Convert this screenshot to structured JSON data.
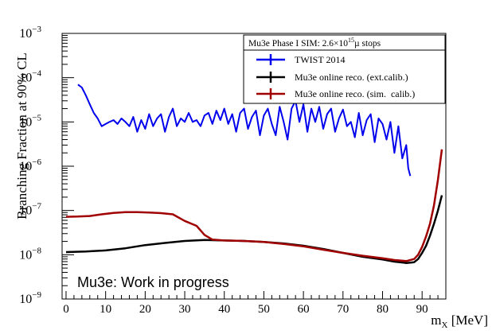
{
  "chart_data": {
    "type": "line",
    "title": "",
    "xlabel_main": "m",
    "xlabel_sub": "X",
    "xlabel_unit": " [MeV]",
    "ylabel": "Branching Fraction at 90% CL",
    "xlim": [
      -1,
      96
    ],
    "ylim_log10": [
      -9,
      -3
    ],
    "x_ticks": [
      0,
      10,
      20,
      30,
      40,
      50,
      60,
      70,
      80,
      90
    ],
    "x_tick_labels": [
      "0",
      "10",
      "20",
      "30",
      "40",
      "50",
      "60",
      "70",
      "80",
      "90"
    ],
    "y_tick_exponents": [
      -9,
      -8,
      -7,
      -6,
      -5,
      -4,
      -3
    ],
    "y_tick_base": "10",
    "y_tick_exponent_labels": [
      "−9",
      "−8",
      "−7",
      "−6",
      "−5",
      "−4",
      "−3"
    ],
    "legend": {
      "position": "top-right",
      "header_prefix": "Mu3e Phase I SIM: 2.6×10",
      "header_exp": "15",
      "header_suffix": "µ stops"
    },
    "annotation": "Mu3e: Work in progress",
    "series": [
      {
        "name": "TWIST 2014",
        "color": "#0000ee",
        "x": [
          3,
          4,
          5,
          6,
          7,
          8,
          9,
          10,
          11,
          12,
          13,
          14,
          15,
          16,
          17,
          18,
          19,
          20,
          21,
          22,
          23,
          24,
          25,
          26,
          27,
          28,
          29,
          30,
          31,
          32,
          33,
          34,
          35,
          36,
          37,
          38,
          39,
          40,
          41,
          42,
          43,
          44,
          45,
          46,
          47,
          48,
          49,
          50,
          51,
          52,
          53,
          54,
          55,
          56,
          57,
          58,
          59,
          60,
          61,
          62,
          63,
          64,
          65,
          66,
          67,
          68,
          69,
          70,
          71,
          72,
          73,
          74,
          75,
          76,
          77,
          78,
          79,
          80,
          81,
          82,
          83,
          84,
          85,
          86,
          86.5,
          87
        ],
        "y": [
          7e-05,
          6e-05,
          4e-05,
          2.5e-05,
          1.6e-05,
          1.2e-05,
          8e-06,
          9e-06,
          1e-05,
          1.1e-05,
          9e-06,
          1.2e-05,
          1e-05,
          8e-06,
          1.3e-05,
          6e-06,
          1.1e-05,
          7e-06,
          1.5e-05,
          8e-06,
          1.2e-05,
          1.5e-05,
          6e-06,
          1.3e-05,
          2e-05,
          8e-06,
          1.2e-05,
          1e-05,
          1.6e-05,
          1e-05,
          1.1e-05,
          8e-06,
          1.4e-05,
          1.6e-05,
          9e-06,
          1.8e-05,
          1.1e-05,
          2e-05,
          9e-06,
          1.5e-05,
          6e-06,
          1.6e-05,
          2e-05,
          7e-06,
          1.3e-05,
          1.8e-05,
          5e-06,
          1.4e-05,
          2e-05,
          9e-06,
          5e-06,
          2.2e-05,
          1e-05,
          4e-06,
          2e-05,
          3e-05,
          1e-05,
          2.5e-05,
          6e-06,
          2e-05,
          1e-05,
          2.2e-05,
          7e-06,
          1.5e-05,
          2e-05,
          6e-06,
          1.2e-05,
          1.9e-05,
          8e-06,
          1e-05,
          4.5e-06,
          1.6e-05,
          5e-06,
          1.1e-05,
          1.5e-05,
          3.5e-06,
          1.2e-05,
          9e-06,
          4e-06,
          1e-05,
          2e-06,
          8e-06,
          1.5e-06,
          3e-06,
          9e-07,
          6e-07
        ]
      },
      {
        "name": "Mu3e online reco. (ext.calib.)",
        "color": "#000000",
        "x": [
          0,
          5,
          10,
          15,
          20,
          25,
          30,
          35,
          40,
          45,
          50,
          55,
          60,
          65,
          70,
          75,
          80,
          83,
          86,
          88,
          89,
          90,
          91,
          92,
          93,
          94,
          95
        ],
        "y": [
          1.15e-08,
          1.18e-08,
          1.25e-08,
          1.4e-08,
          1.65e-08,
          1.85e-08,
          2.05e-08,
          2.15e-08,
          2.1e-08,
          2.05e-08,
          1.95e-08,
          1.8e-08,
          1.6e-08,
          1.35e-08,
          1.1e-08,
          9e-09,
          7.8e-09,
          7e-09,
          6.5e-09,
          6.8e-09,
          8e-09,
          1.1e-08,
          1.6e-08,
          2.7e-08,
          5e-08,
          1e-07,
          2.2e-07
        ]
      },
      {
        "name": "Mu3e online reco. (sim.  calib.)",
        "color": "#a00000",
        "x": [
          0,
          3,
          6,
          9,
          12,
          15,
          18,
          21,
          24,
          27,
          30,
          33,
          35,
          37,
          40,
          45,
          50,
          55,
          60,
          65,
          70,
          75,
          80,
          83,
          86,
          88,
          89,
          90,
          91,
          92,
          93,
          94,
          95
        ],
        "y": [
          7.2e-08,
          7.3e-08,
          7.5e-08,
          8.2e-08,
          8.8e-08,
          9.2e-08,
          9.2e-08,
          9e-08,
          8.7e-08,
          8.2e-08,
          5.8e-08,
          4.5e-08,
          2.8e-08,
          2.2e-08,
          2.1e-08,
          2.05e-08,
          1.95e-08,
          1.75e-08,
          1.55e-08,
          1.3e-08,
          1.1e-08,
          9.5e-09,
          8.3e-09,
          7.6e-09,
          7.2e-09,
          8e-09,
          1e-08,
          1.5e-08,
          2.6e-08,
          5e-08,
          1.3e-07,
          5e-07,
          2.4e-06
        ]
      }
    ]
  }
}
